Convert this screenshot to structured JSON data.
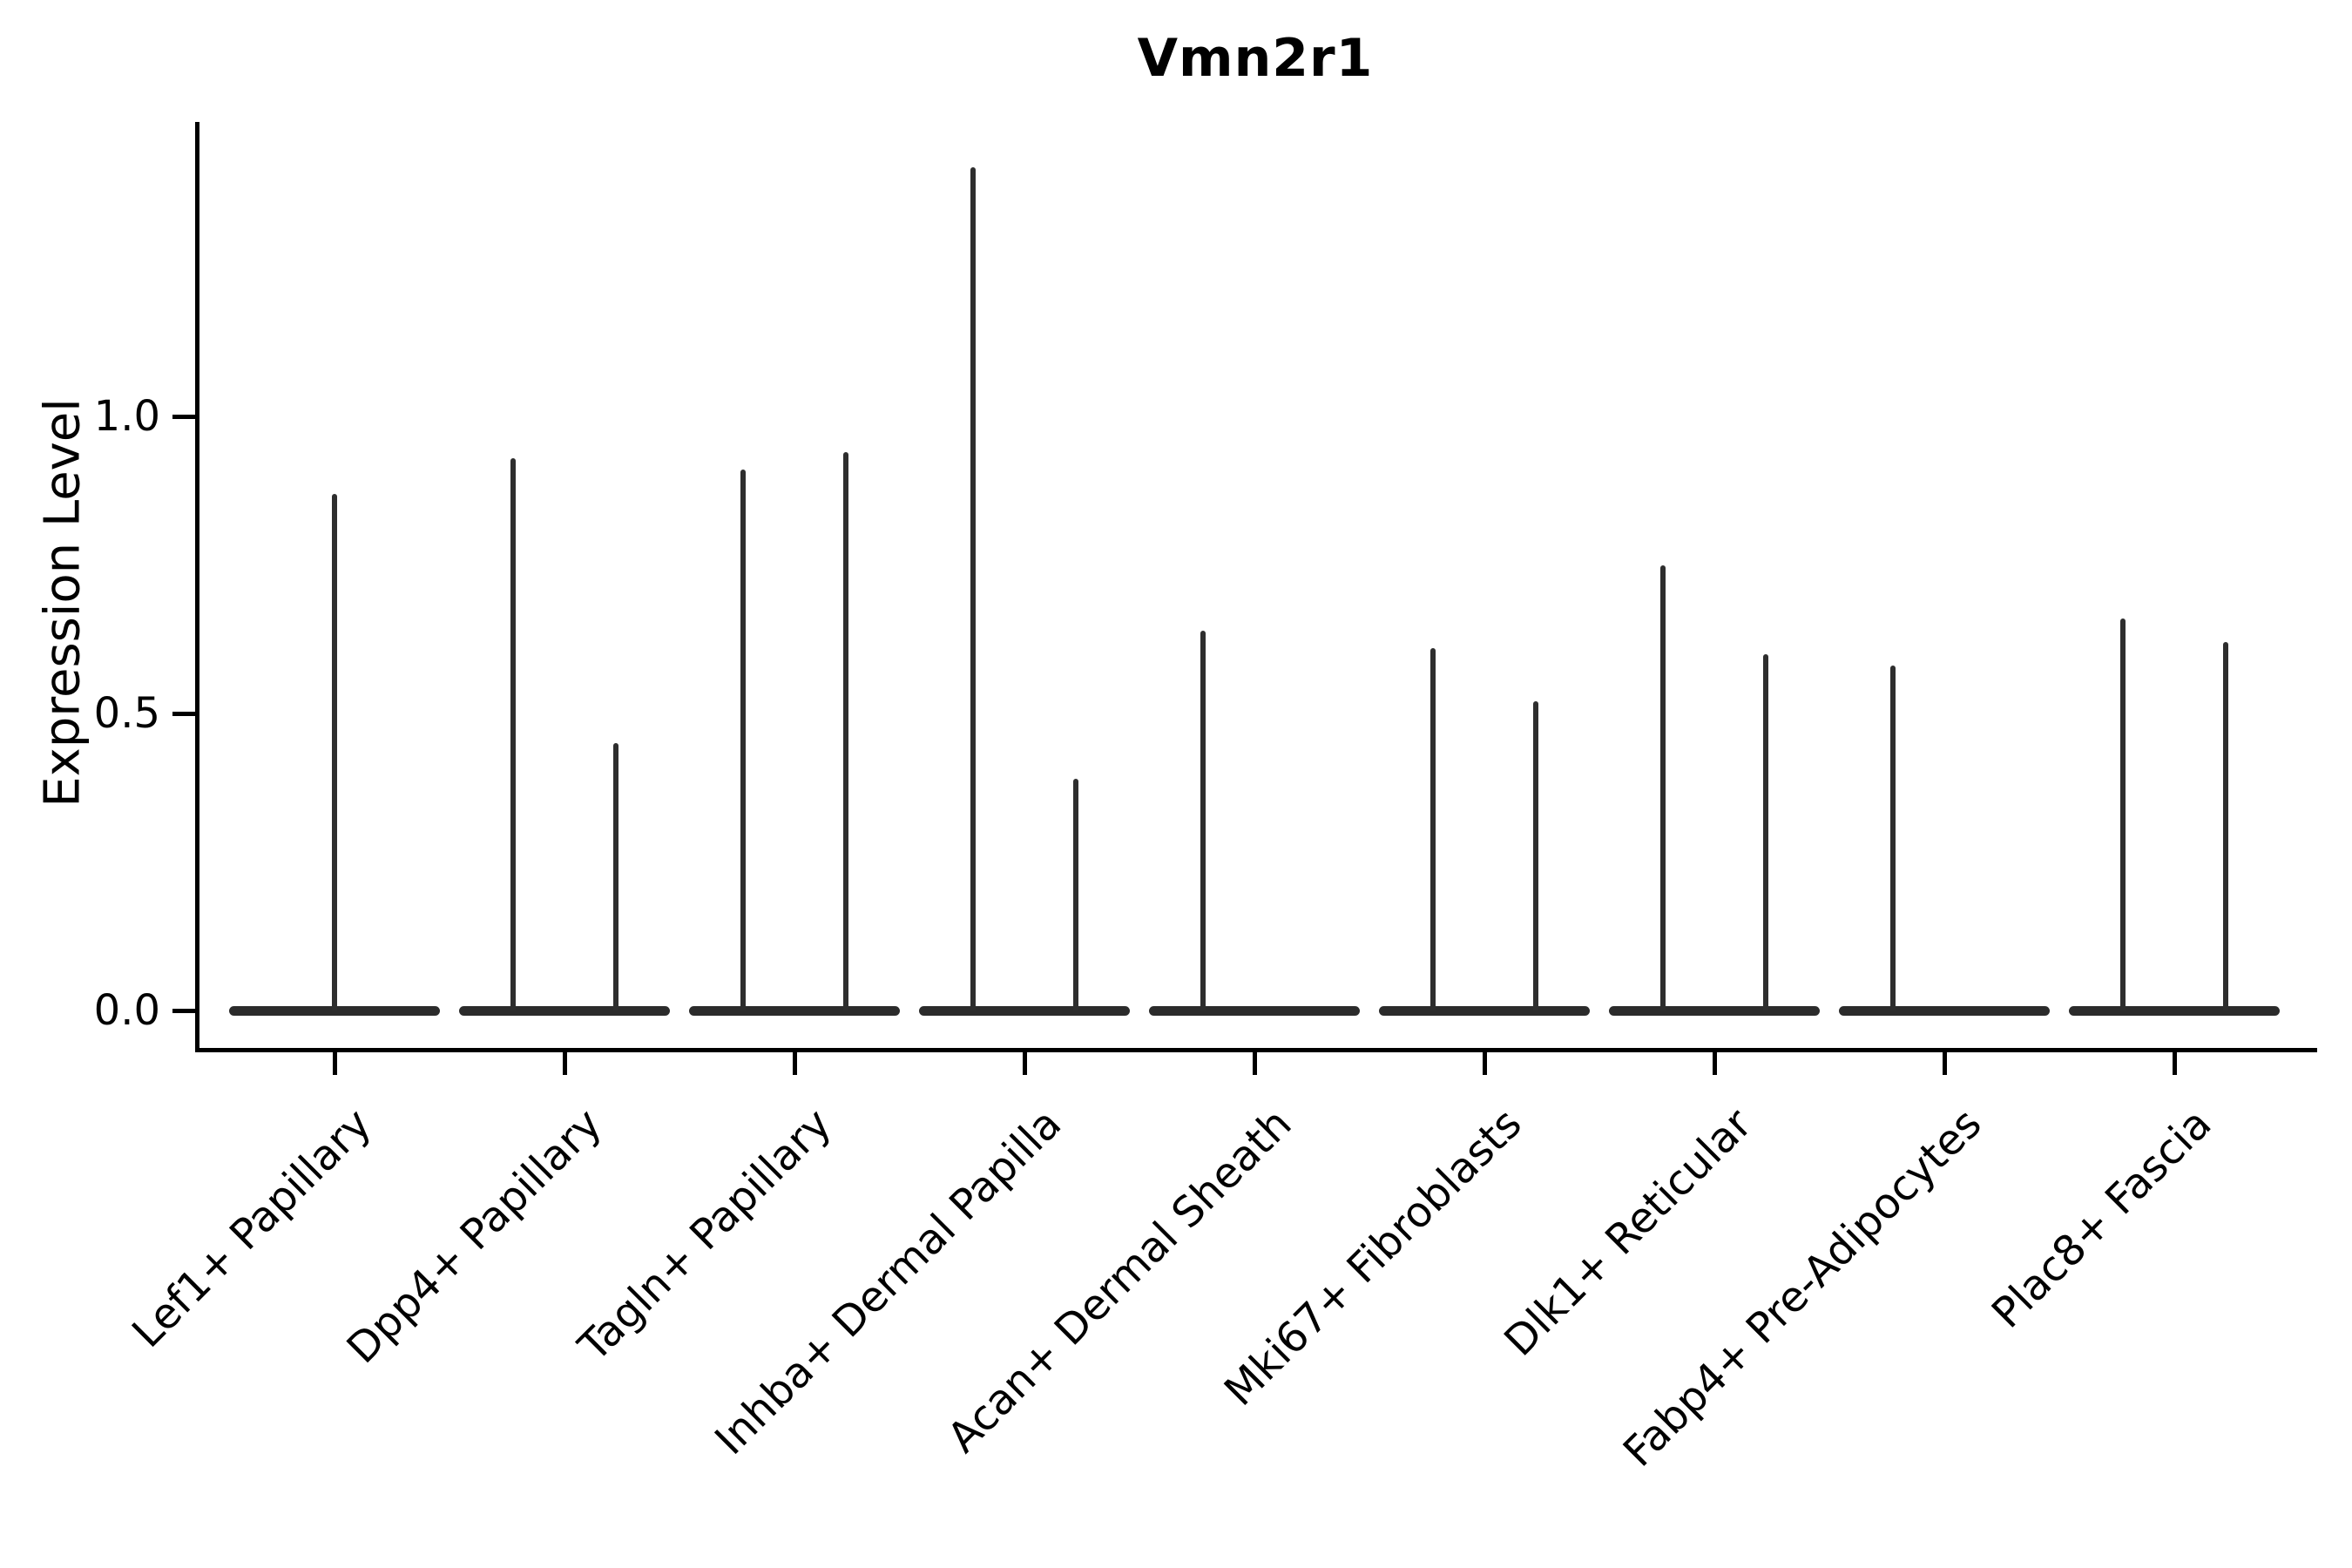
{
  "figure": {
    "title": "Vmn2r1",
    "ylabel": "Expression Level"
  },
  "chart_data": {
    "type": "violin",
    "title": "Vmn2r1",
    "xlabel": "",
    "ylabel": "Expression Level",
    "grid": false,
    "legend": "none",
    "ylim": [
      -0.07,
      1.5
    ],
    "yticks": [
      "0.0",
      "0.5",
      "1.0"
    ],
    "ytick_values": [
      0.0,
      0.5,
      1.0
    ],
    "categories": [
      "Lef1+ Papillary",
      "Dpp4+ Papillary",
      "Tagln+ Papillary",
      "Inhba+ Dermal Papilla",
      "Acan+ Dermal Sheath",
      "Mki67+ Fibroblasts",
      "Dlk1+ Reticular",
      "Fabp4+ Pre-Adipocytes",
      "Plac8+ Fascia"
    ],
    "violins": [
      {
        "category": "Lef1+ Papillary",
        "mass_at_zero": true,
        "spikes": [
          {
            "position": "center",
            "max": 0.87
          }
        ]
      },
      {
        "category": "Dpp4+ Papillary",
        "mass_at_zero": true,
        "spikes": [
          {
            "position": "left",
            "max": 0.93
          },
          {
            "position": "right",
            "max": 0.45
          }
        ]
      },
      {
        "category": "Tagln+ Papillary",
        "mass_at_zero": true,
        "spikes": [
          {
            "position": "left",
            "max": 0.91
          },
          {
            "position": "right",
            "max": 0.94
          }
        ]
      },
      {
        "category": "Inhba+ Dermal Papilla",
        "mass_at_zero": true,
        "spikes": [
          {
            "position": "left",
            "max": 1.42
          },
          {
            "position": "right",
            "max": 0.39
          }
        ]
      },
      {
        "category": "Acan+ Dermal Sheath",
        "mass_at_zero": true,
        "spikes": [
          {
            "position": "left",
            "max": 0.64
          }
        ]
      },
      {
        "category": "Mki67+ Fibroblasts",
        "mass_at_zero": true,
        "spikes": [
          {
            "position": "left",
            "max": 0.61
          },
          {
            "position": "right",
            "max": 0.52
          }
        ]
      },
      {
        "category": "Dlk1+ Reticular",
        "mass_at_zero": true,
        "spikes": [
          {
            "position": "left",
            "max": 0.75
          },
          {
            "position": "right",
            "max": 0.6
          }
        ]
      },
      {
        "category": "Fabp4+ Pre-Adipocytes",
        "mass_at_zero": true,
        "spikes": [
          {
            "position": "left",
            "max": 0.58
          }
        ]
      },
      {
        "category": "Plac8+ Fascia",
        "mass_at_zero": true,
        "spikes": [
          {
            "position": "left",
            "max": 0.66
          },
          {
            "position": "right",
            "max": 0.62
          }
        ]
      }
    ],
    "colors": {
      "violin_line": "#2b2b2b",
      "axis": "#000000",
      "text": "#000000",
      "background": "#ffffff"
    }
  }
}
